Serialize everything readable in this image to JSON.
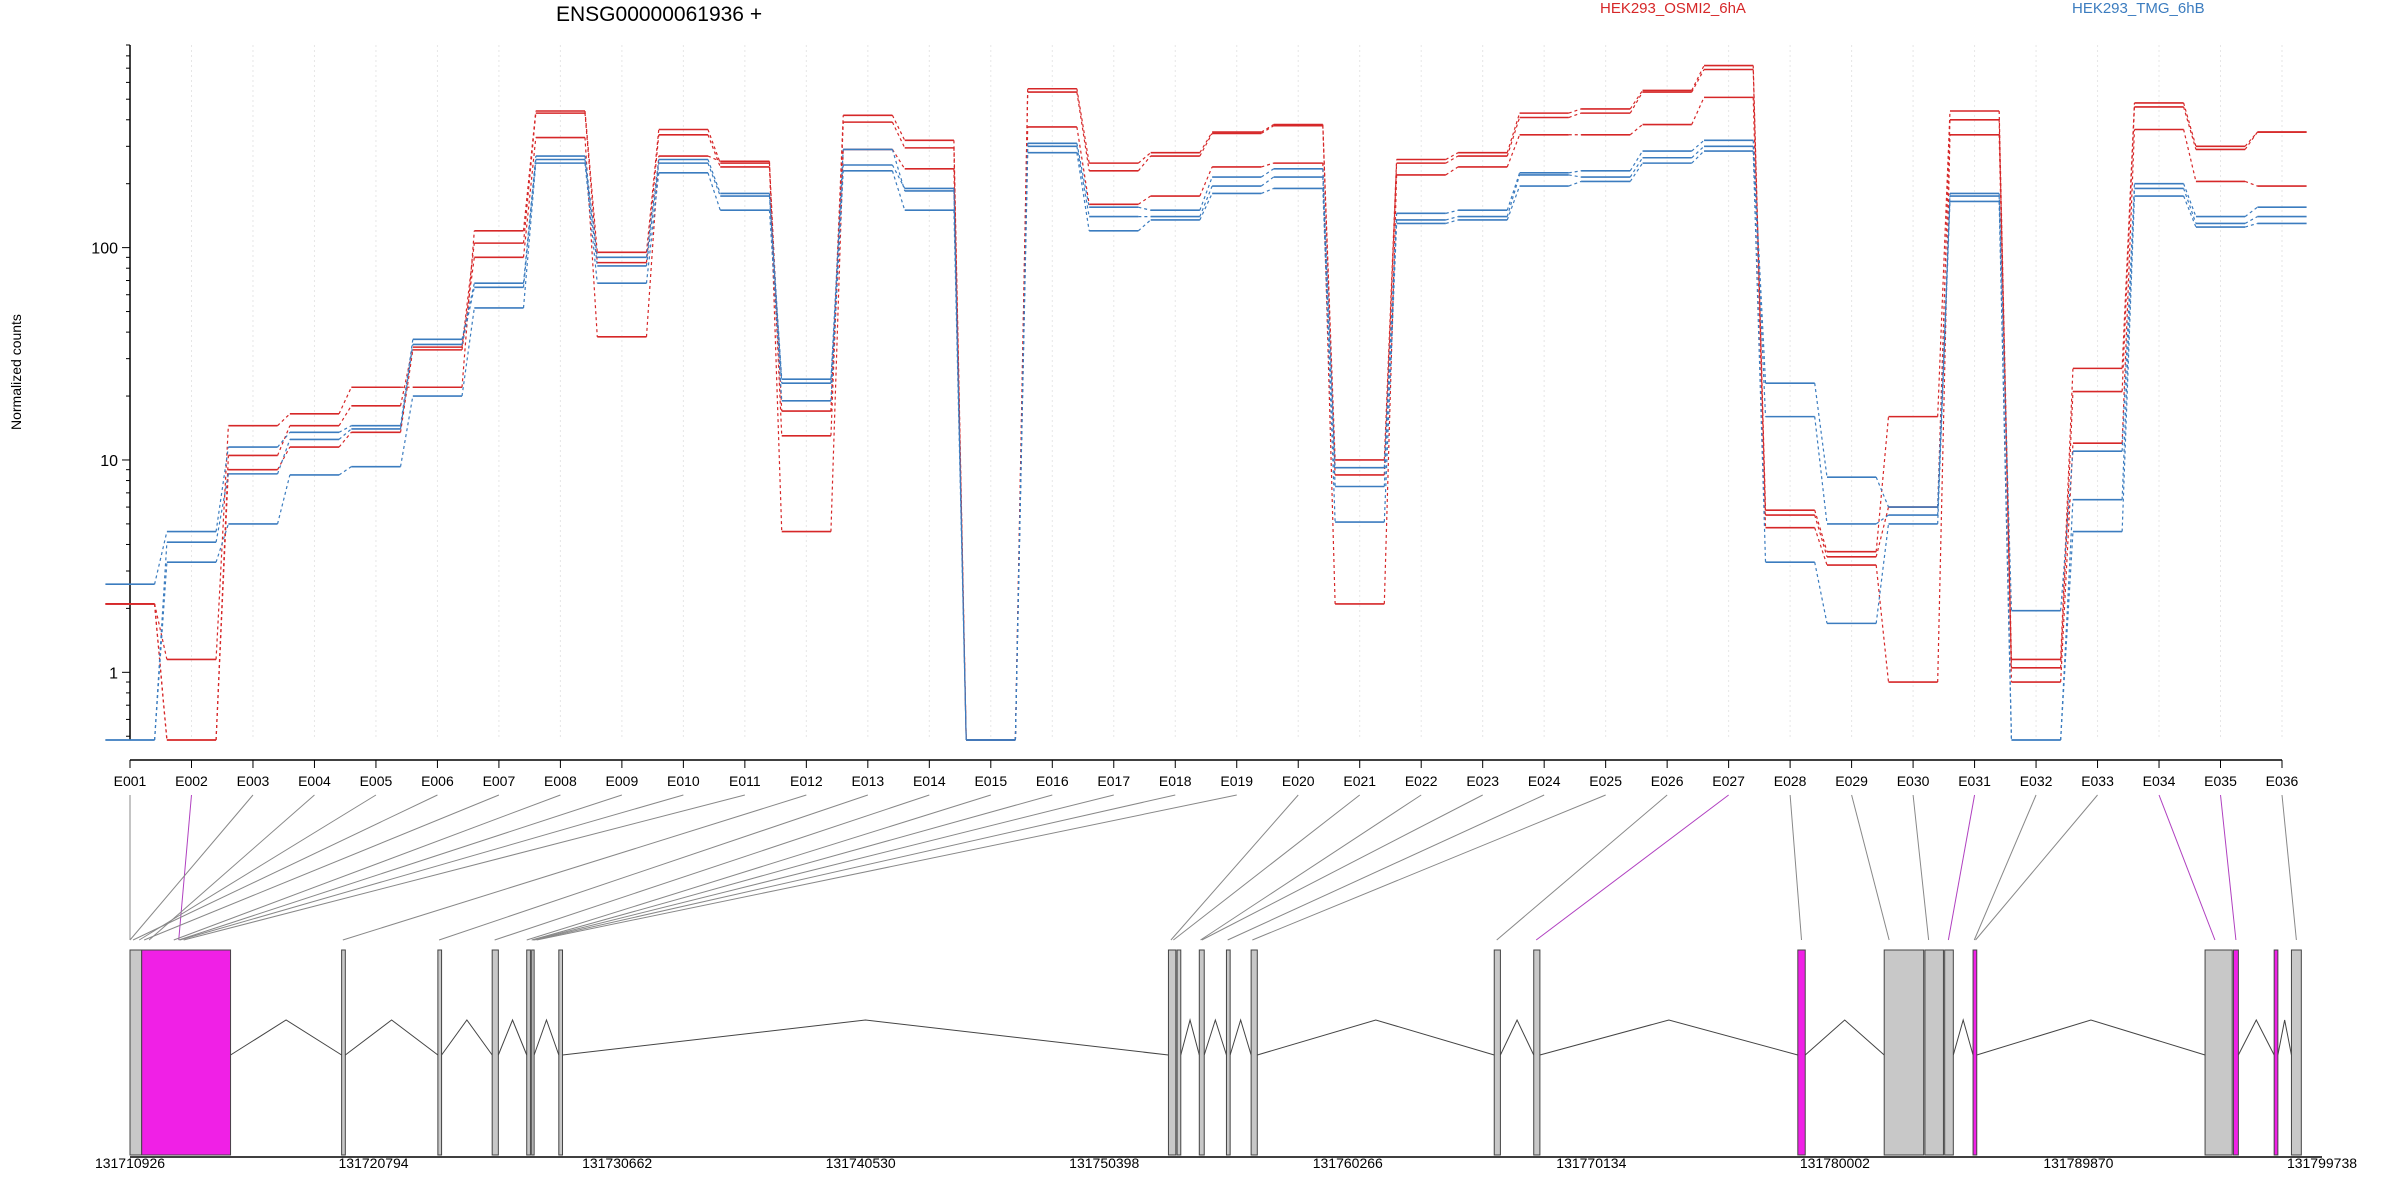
{
  "chart_data": {
    "type": "line",
    "title": "ENSG00000061936 +",
    "ylabel": "Normalized counts",
    "yscale": "log",
    "ylim": [
      0.48,
      900
    ],
    "yticks": [
      1,
      10,
      100
    ],
    "ytick_labels": [
      "1",
      "10",
      "100"
    ],
    "grid": "vertical-dotted",
    "categories": [
      "E001",
      "E002",
      "E003",
      "E004",
      "E005",
      "E006",
      "E007",
      "E008",
      "E009",
      "E010",
      "E011",
      "E012",
      "E013",
      "E014",
      "E015",
      "E016",
      "E017",
      "E018",
      "E019",
      "E020",
      "E021",
      "E022",
      "E023",
      "E024",
      "E025",
      "E026",
      "E027",
      "E028",
      "E029",
      "E030",
      "E031",
      "E032",
      "E033",
      "E034",
      "E035",
      "E036"
    ],
    "groups": [
      {
        "name": "HEK293_OSMI2_6hA",
        "color": "#d62728"
      },
      {
        "name": "HEK293_TMG_6hB",
        "color": "#3b7cbf"
      }
    ],
    "series": [
      {
        "group": 0,
        "values": [
          2.1,
          1.15,
          14.5,
          16.5,
          22,
          22,
          120,
          440,
          95,
          360,
          250,
          17,
          420,
          320,
          0.48,
          560,
          250,
          280,
          350,
          380,
          10,
          260,
          280,
          430,
          450,
          550,
          720,
          5.8,
          3.7,
          16,
          440,
          1.15,
          27,
          480,
          300,
          350
        ]
      },
      {
        "group": 0,
        "values": [
          2.1,
          0.48,
          10.5,
          14.5,
          18,
          34,
          105,
          430,
          85,
          340,
          240,
          13,
          390,
          295,
          0.48,
          540,
          230,
          270,
          345,
          375,
          8.5,
          250,
          270,
          410,
          430,
          540,
          690,
          5.5,
          3.5,
          6,
          400,
          1.05,
          21,
          460,
          290,
          350
        ]
      },
      {
        "group": 0,
        "values": [
          2.1,
          0.48,
          9.0,
          11.5,
          13.5,
          33,
          90,
          330,
          38,
          270,
          255,
          4.6,
          290,
          235,
          0.48,
          370,
          160,
          175,
          240,
          250,
          2.1,
          220,
          240,
          340,
          340,
          380,
          510,
          4.8,
          3.2,
          0.9,
          340,
          0.9,
          12,
          360,
          205,
          195
        ]
      },
      {
        "group": 1,
        "values": [
          2.6,
          4.6,
          11.5,
          13.5,
          14.5,
          37,
          68,
          270,
          90,
          260,
          180,
          24,
          290,
          185,
          0.48,
          310,
          155,
          150,
          215,
          235,
          9.2,
          145,
          150,
          225,
          230,
          285,
          320,
          23,
          8.3,
          6,
          180,
          1.95,
          11,
          200,
          140,
          155
        ]
      },
      {
        "group": 1,
        "values": [
          0.48,
          4.1,
          8.6,
          12.5,
          14,
          35,
          65,
          260,
          82,
          250,
          175,
          23,
          245,
          190,
          0.48,
          300,
          140,
          140,
          195,
          215,
          7.5,
          135,
          140,
          220,
          215,
          265,
          300,
          16,
          5,
          5.5,
          175,
          0.48,
          6.5,
          190,
          130,
          140
        ]
      },
      {
        "group": 1,
        "values": [
          0.48,
          3.3,
          5.0,
          8.5,
          9.3,
          20,
          52,
          250,
          68,
          225,
          150,
          19,
          230,
          150,
          0.48,
          280,
          120,
          135,
          180,
          190,
          5.1,
          130,
          135,
          195,
          205,
          250,
          285,
          3.3,
          1.7,
          5,
          165,
          0.48,
          4.6,
          175,
          125,
          130
        ]
      }
    ],
    "exon_colors": [
      "#c8c8c8",
      "#f020e6",
      "#ffffff",
      "#ffffff",
      "#ffffff",
      "#ffffff",
      "#ffffff",
      "#ffffff",
      "#ffffff",
      "#ffffff",
      "#ffffff",
      "#ffffff",
      "#ffffff",
      "#ffffff",
      "#ffffff",
      "#ffffff",
      "#ffffff",
      "#ffffff",
      "#ffffff",
      "#ffffff",
      "#ffffff",
      "#ffffff",
      "#ffffff",
      "#ffffff",
      "#ffffff",
      "#ffffff",
      "#f020e6",
      "#ffffff",
      "#c8c8c8",
      "#c8c8c8",
      "#f020e6",
      "#ffffff",
      "#c8c8c8",
      "#f020e6",
      "#f020e6",
      "#c8c8c8"
    ],
    "gene_model": {
      "start": 131710926,
      "end": 131799738,
      "tick_labels": [
        "131710926",
        "131720794",
        "131730662",
        "131740530",
        "131750398",
        "131760266",
        "131770134",
        "131780002",
        "131789870",
        "131799738"
      ],
      "exons": [
        [
          131710926,
          131711400
        ],
        [
          131711400,
          131715000
        ],
        [
          131719500,
          131719650
        ],
        [
          131723400,
          131723550
        ],
        [
          131725600,
          131725850
        ],
        [
          131727000,
          131727150
        ],
        [
          131727200,
          131727300
        ],
        [
          131728300,
          131728450
        ],
        [
          131753000,
          131753300
        ],
        [
          131753350,
          131753500
        ],
        [
          131754250,
          131754450
        ],
        [
          131755350,
          131755500
        ],
        [
          131756350,
          131756600
        ],
        [
          131766200,
          131766450
        ],
        [
          131767800,
          131768050
        ],
        [
          131778500,
          131778800
        ],
        [
          131782000,
          131783600
        ],
        [
          131783650,
          131784400
        ],
        [
          131784450,
          131784800
        ],
        [
          131785600,
          131785750
        ],
        [
          131795000,
          131796100
        ],
        [
          131796150,
          131796350
        ],
        [
          131797800,
          131797950
        ],
        [
          131798500,
          131798900
        ]
      ],
      "introns": [
        [
          131715000,
          131719500
        ],
        [
          131719650,
          131723400
        ],
        [
          131723550,
          131725600
        ],
        [
          131725850,
          131727000
        ],
        [
          131727300,
          131728300
        ],
        [
          131728450,
          131753000
        ],
        [
          131753500,
          131754250
        ],
        [
          131754450,
          131755350
        ],
        [
          131755500,
          131756350
        ],
        [
          131756600,
          131766200
        ],
        [
          131766450,
          131767800
        ],
        [
          131768050,
          131778500
        ],
        [
          131778800,
          131782000
        ],
        [
          131784800,
          131785600
        ],
        [
          131785750,
          131795000
        ],
        [
          131796350,
          131797800
        ],
        [
          131797950,
          131798500
        ]
      ],
      "highlight_regions": [
        {
          "start": 131711400,
          "end": 131715000,
          "color": "#f020e6"
        },
        {
          "start": 131778500,
          "end": 131778800,
          "color": "#f020e6"
        },
        {
          "start": 131785600,
          "end": 131785750,
          "color": "#f020e6"
        },
        {
          "start": 131796150,
          "end": 131796350,
          "color": "#f020e6"
        },
        {
          "start": 131797800,
          "end": 131797950,
          "color": "#f020e6"
        }
      ],
      "exon_genomic_positions": [
        131710926,
        131712900,
        131710926,
        131711700,
        131711300,
        131711050,
        131711500,
        131712700,
        131712900,
        131712950,
        131713100,
        131719550,
        131723450,
        131725700,
        131727000,
        131727200,
        131727250,
        131727300,
        131727400,
        131753100,
        131753200,
        131754300,
        131754350,
        131755400,
        131756400,
        131766300,
        131767900,
        131778650,
        131782200,
        131783800,
        131784600,
        131785650,
        131785700,
        131795400,
        131796250,
        131798700
      ]
    }
  }
}
